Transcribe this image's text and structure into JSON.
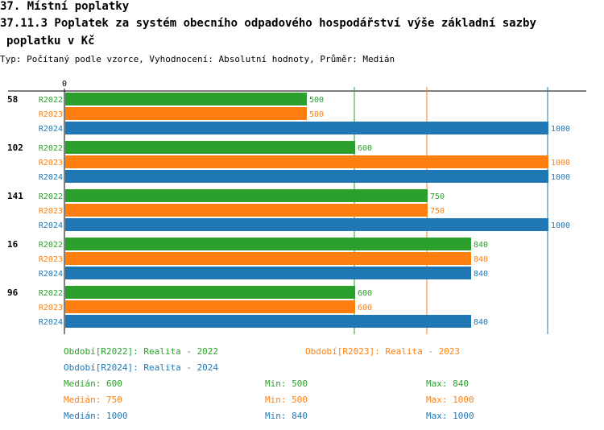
{
  "header": {
    "line1": "37. Místní poplatky",
    "line2": "37.11.3 Poplatek za systém obecního odpadového hospodářství   výše základní sazby",
    "line3": "poplatku v Kč",
    "subtitle": "Typ: Počítaný podle vzorce, Vyhodnocení: Absolutní hodnoty, Průměr: Medián"
  },
  "colors": {
    "R2022": "#2ca02c",
    "R2023": "#ff7f0e",
    "R2024": "#1f77b4"
  },
  "chart_data": {
    "type": "bar",
    "orientation": "horizontal",
    "axis_zero_label": "0",
    "xlim": [
      0,
      1000
    ],
    "reference_lines": [
      600,
      750,
      1000
    ],
    "groups": [
      {
        "label": "58",
        "bars": [
          {
            "series": "R2022",
            "value": 500
          },
          {
            "series": "R2023",
            "value": 500
          },
          {
            "series": "R2024",
            "value": 1000
          }
        ]
      },
      {
        "label": "102",
        "bars": [
          {
            "series": "R2022",
            "value": 600
          },
          {
            "series": "R2023",
            "value": 1000
          },
          {
            "series": "R2024",
            "value": 1000
          }
        ]
      },
      {
        "label": "141",
        "bars": [
          {
            "series": "R2022",
            "value": 750
          },
          {
            "series": "R2023",
            "value": 750
          },
          {
            "series": "R2024",
            "value": 1000
          }
        ]
      },
      {
        "label": "16",
        "bars": [
          {
            "series": "R2022",
            "value": 840
          },
          {
            "series": "R2023",
            "value": 840
          },
          {
            "series": "R2024",
            "value": 840
          }
        ]
      },
      {
        "label": "96",
        "bars": [
          {
            "series": "R2022",
            "value": 600
          },
          {
            "series": "R2023",
            "value": 600
          },
          {
            "series": "R2024",
            "value": 840
          }
        ]
      }
    ]
  },
  "legend": {
    "periods": [
      "Období[R2022]: Realita - 2022",
      "Období[R2023]: Realita - 2023",
      "Období[R2024]: Realita - 2024"
    ],
    "stats": [
      {
        "median": "Medián: 600",
        "min": "Min: 500",
        "max": "Max: 840"
      },
      {
        "median": "Medián: 750",
        "min": "Min: 500",
        "max": "Max: 1000"
      },
      {
        "median": "Medián: 1000",
        "min": "Min: 840",
        "max": "Max: 1000"
      }
    ]
  }
}
